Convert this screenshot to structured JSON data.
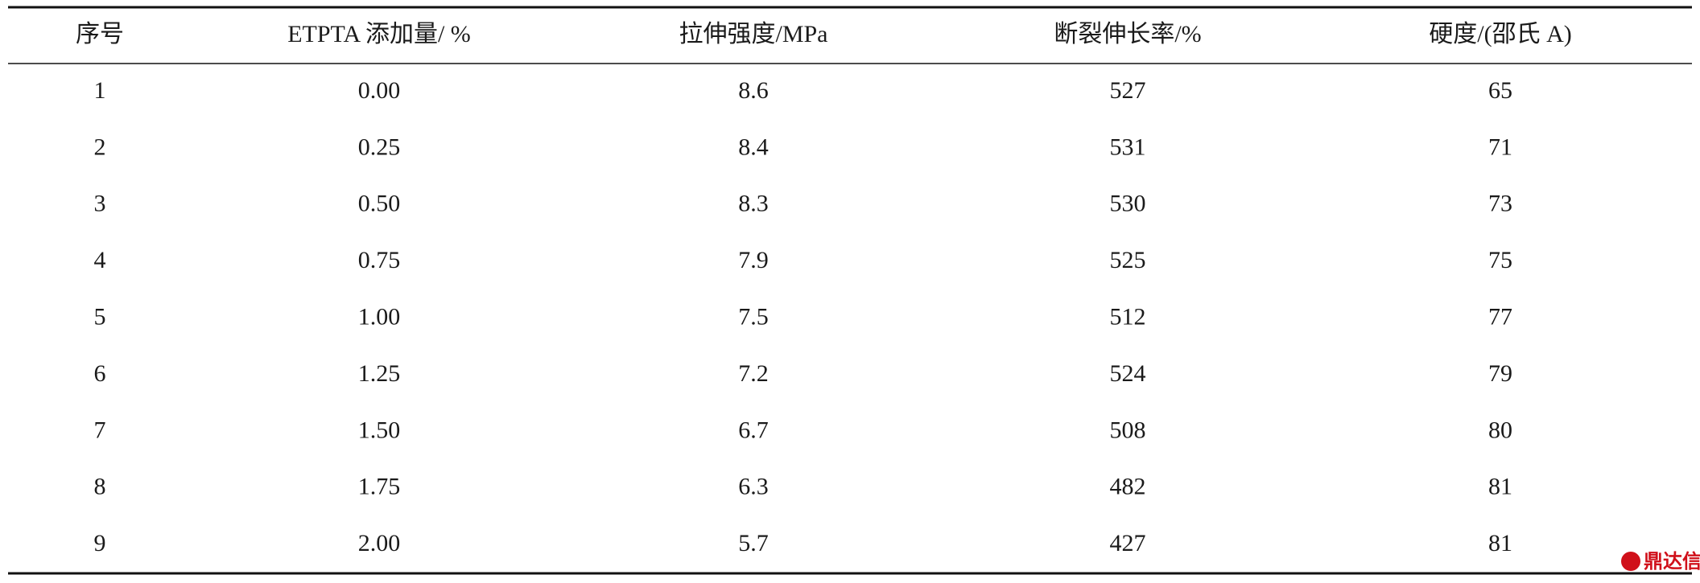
{
  "table": {
    "header": [
      "序号",
      "ETPTA 添加量/ %",
      "拉伸强度/MPa",
      "断裂伸长率/%",
      "硬度/(邵氏 A)"
    ],
    "rows": [
      [
        "1",
        "0.00",
        "8.6",
        "527",
        "65"
      ],
      [
        "2",
        "0.25",
        "8.4",
        "531",
        "71"
      ],
      [
        "3",
        "0.50",
        "8.3",
        "530",
        "73"
      ],
      [
        "4",
        "0.75",
        "7.9",
        "525",
        "75"
      ],
      [
        "5",
        "1.00",
        "7.5",
        "512",
        "77"
      ],
      [
        "6",
        "1.25",
        "7.2",
        "524",
        "79"
      ],
      [
        "7",
        "1.50",
        "6.7",
        "508",
        "80"
      ],
      [
        "8",
        "1.75",
        "6.3",
        "482",
        "81"
      ],
      [
        "9",
        "2.00",
        "5.7",
        "427",
        "81"
      ]
    ]
  },
  "watermark": "鼎达信"
}
